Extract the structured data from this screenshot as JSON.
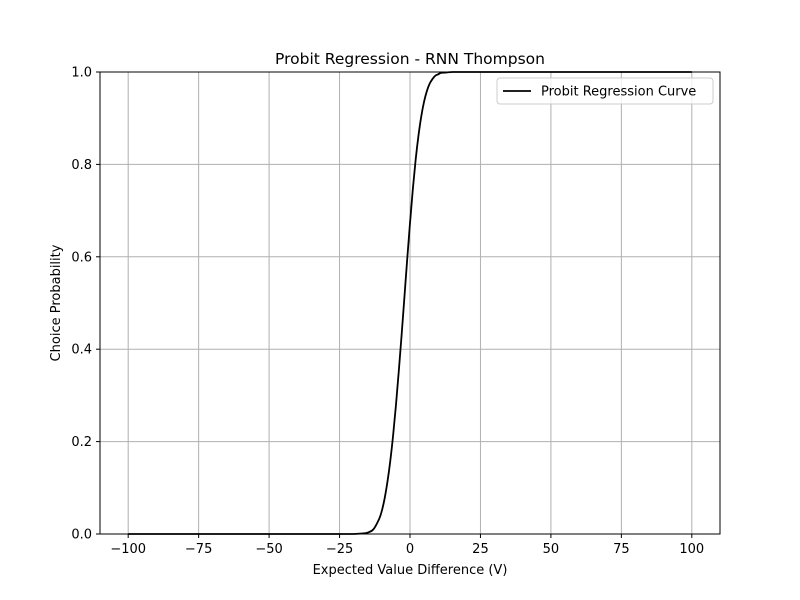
{
  "chart_data": {
    "type": "line",
    "title": "Probit Regression - RNN Thompson",
    "xlabel": "Expected Value Difference (V)",
    "ylabel": "Choice Probability",
    "xlim": [
      -110,
      110
    ],
    "ylim": [
      0,
      1
    ],
    "xticks": [
      -100,
      -75,
      -50,
      -25,
      0,
      25,
      50,
      75,
      100
    ],
    "xtick_labels": [
      "−100",
      "−75",
      "−50",
      "−25",
      "0",
      "25",
      "50",
      "75",
      "100"
    ],
    "yticks": [
      0,
      0.2,
      0.4,
      0.6,
      0.8,
      1.0
    ],
    "ytick_labels": [
      "0.0",
      "0.2",
      "0.4",
      "0.6",
      "0.8",
      "1.0"
    ],
    "grid": true,
    "legend_position": "upper right",
    "series": [
      {
        "name": "Probit Regression Curve",
        "color": "#000000",
        "x": [
          -100,
          -50,
          -25,
          -20,
          -17,
          -15,
          -13,
          -11,
          -10,
          -9,
          -8,
          -7,
          -6,
          -5,
          -4,
          -3,
          -2,
          -1,
          0,
          1,
          2,
          3,
          4,
          5,
          6,
          7,
          8,
          9,
          10,
          11,
          13,
          15,
          17,
          20,
          25,
          50,
          100
        ],
        "y": [
          0.0,
          0.0,
          0.0,
          0.0,
          0.001,
          0.003,
          0.01,
          0.032,
          0.05,
          0.077,
          0.113,
          0.158,
          0.213,
          0.278,
          0.351,
          0.429,
          0.511,
          0.594,
          0.673,
          0.746,
          0.81,
          0.862,
          0.904,
          0.936,
          0.959,
          0.975,
          0.985,
          0.992,
          0.995,
          0.998,
          0.999,
          1.0,
          1.0,
          1.0,
          1.0,
          1.0,
          1.0
        ]
      }
    ]
  }
}
